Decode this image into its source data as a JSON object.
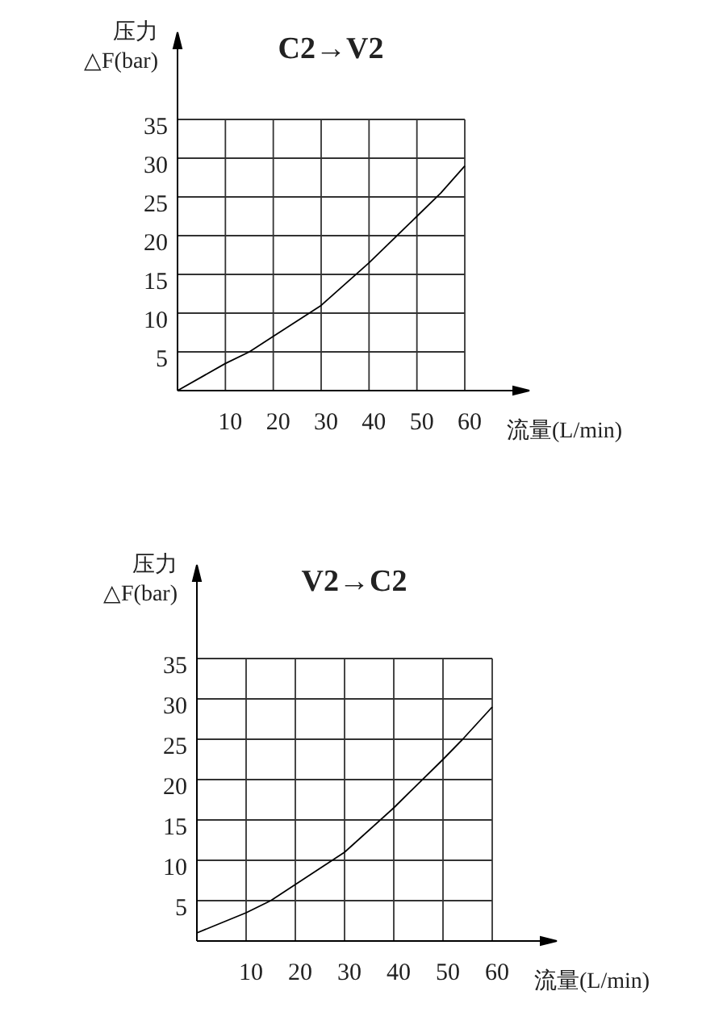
{
  "chart_data": [
    {
      "type": "line",
      "title": "C2→V2",
      "xlabel": "流量(L/min)",
      "ylabel": "压力 △F(bar)",
      "x": [
        0,
        10,
        15,
        20,
        30,
        40,
        50,
        55,
        60
      ],
      "values": [
        0,
        3.5,
        5,
        7,
        11,
        16.5,
        22.5,
        25.5,
        29
      ],
      "color": "#000000",
      "xlim": [
        0,
        60
      ],
      "ylim": [
        0,
        35
      ],
      "xticks": [
        10,
        20,
        30,
        40,
        50,
        60
      ],
      "yticks": [
        5,
        10,
        15,
        20,
        25,
        30,
        35
      ],
      "grid": true
    },
    {
      "type": "line",
      "title": "V2→C2",
      "xlabel": "流量(L/min)",
      "ylabel": "压力 △F(bar)",
      "x": [
        0,
        10,
        15,
        20,
        30,
        40,
        50,
        54,
        60
      ],
      "values": [
        1,
        3.5,
        5,
        7,
        11,
        16.5,
        22.5,
        25,
        29
      ],
      "color": "#000000",
      "xlim": [
        0,
        60
      ],
      "ylim": [
        0,
        35
      ],
      "xticks": [
        10,
        20,
        30,
        40,
        50,
        60
      ],
      "yticks": [
        5,
        10,
        15,
        20,
        25,
        30,
        35
      ],
      "grid": true
    }
  ]
}
